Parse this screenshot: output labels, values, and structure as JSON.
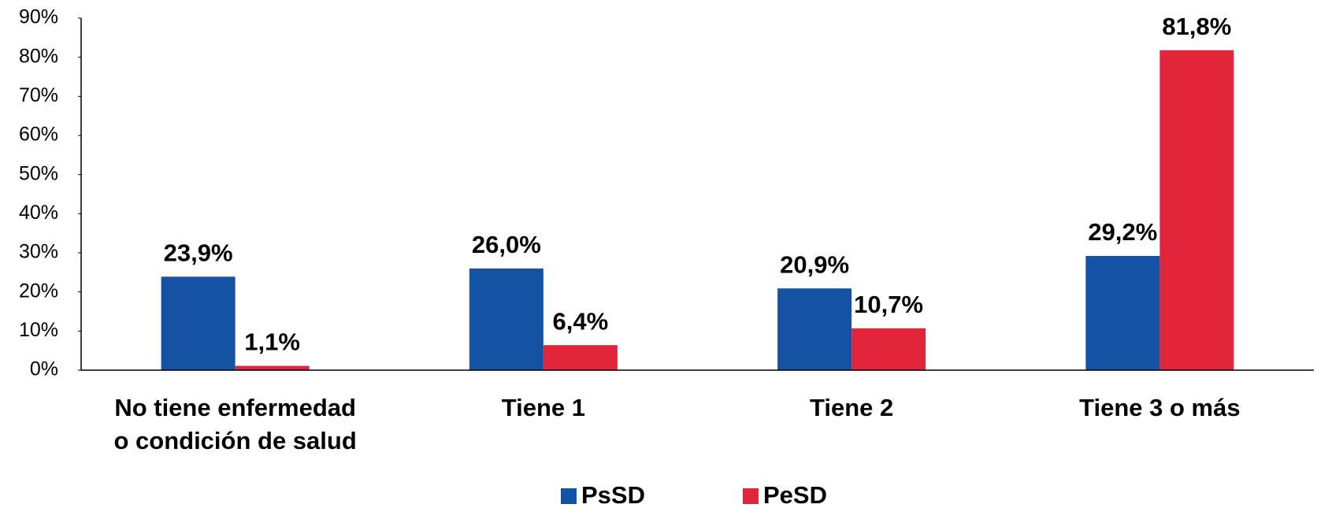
{
  "chart_data": {
    "type": "bar",
    "categories": [
      "No tiene enfermedad o condición de salud",
      "Tiene 1",
      "Tiene 2",
      "Tiene 3 o más"
    ],
    "series": [
      {
        "name": "PsSD",
        "color": "#1453a3",
        "values": [
          23.9,
          26.0,
          20.9,
          29.2
        ],
        "value_labels": [
          "23,9%",
          "26,0%",
          "20,9%",
          "29,2%"
        ]
      },
      {
        "name": "PeSD",
        "color": "#e1253a",
        "values": [
          1.1,
          6.4,
          10.7,
          81.8
        ],
        "value_labels": [
          "1,1%",
          "6,4%",
          "10,7%",
          "81,8%"
        ]
      }
    ],
    "ylim": [
      0,
      90
    ],
    "yticks": [
      {
        "value": 0,
        "label": "0%"
      },
      {
        "value": 10,
        "label": "10%"
      },
      {
        "value": 20,
        "label": "20%"
      },
      {
        "value": 30,
        "label": "30%"
      },
      {
        "value": 40,
        "label": "40%"
      },
      {
        "value": 50,
        "label": "50%"
      },
      {
        "value": 60,
        "label": "60%"
      },
      {
        "value": 70,
        "label": "70%"
      },
      {
        "value": 80,
        "label": "80%"
      },
      {
        "value": 90,
        "label": "90%"
      }
    ],
    "grid": false,
    "legend": "bottom"
  }
}
